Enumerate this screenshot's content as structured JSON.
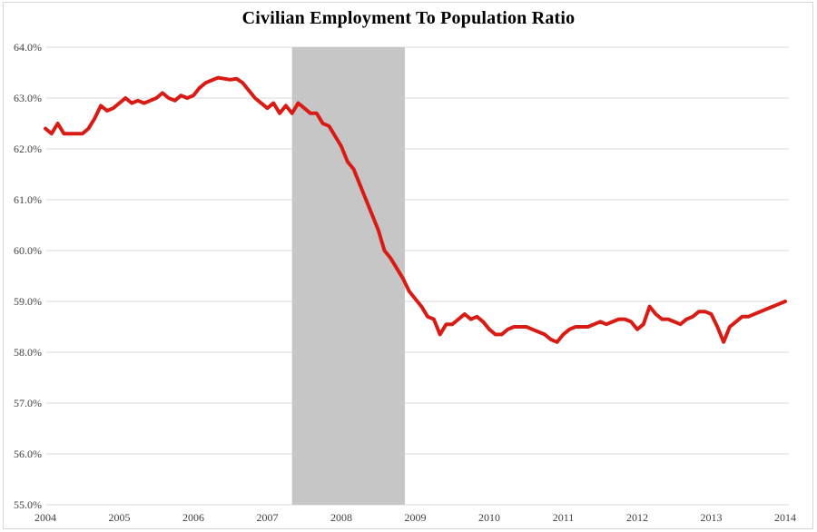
{
  "page": {
    "background": "#ffffff",
    "frame_border_color": "#d6d6d6"
  },
  "chart_data": {
    "type": "line",
    "title": "Civilian Employment To Population Ratio",
    "xlabel": "",
    "ylabel": "",
    "ylim": [
      55,
      64
    ],
    "grid": true,
    "legend": "none",
    "frequency": "monthly",
    "x_start": "2004-01",
    "x_end": "2014-01",
    "y_tick_values": [
      64,
      63,
      62,
      61,
      60,
      59,
      58,
      57,
      56,
      55
    ],
    "y_tick_labels": [
      "64.0%",
      "63.0%",
      "62.0%",
      "61.0%",
      "60.0%",
      "59.0%",
      "58.0%",
      "57.0%",
      "56.0%",
      "55.0%"
    ],
    "x_tick_labels": [
      "2004",
      "2005",
      "2006",
      "2007",
      "2008",
      "2009",
      "2010",
      "2011",
      "2012",
      "2013",
      "2014"
    ],
    "x_tick_month_indices": [
      0,
      12,
      24,
      36,
      48,
      60,
      72,
      84,
      96,
      108,
      120
    ],
    "shaded_region": {
      "name": "recession-band",
      "start_month_index": 40,
      "end_month_index": 58.3,
      "color": "#c6c6c6"
    },
    "colors": {
      "gridline": "#d9d9d9",
      "tick_label": "#404040",
      "title": "#000000"
    },
    "series": [
      {
        "name": "Civilian Employment To Population Ratio",
        "color": "#d81c15",
        "line_width": 4,
        "values": [
          62.4,
          62.3,
          62.5,
          62.3,
          62.3,
          62.3,
          62.3,
          62.4,
          62.6,
          62.85,
          62.75,
          62.8,
          62.9,
          63.0,
          62.9,
          62.95,
          62.9,
          62.95,
          63.0,
          63.1,
          63.0,
          62.95,
          63.05,
          63.0,
          63.05,
          63.2,
          63.3,
          63.35,
          63.4,
          63.38,
          63.36,
          63.38,
          63.3,
          63.15,
          63.0,
          62.9,
          62.8,
          62.9,
          62.7,
          62.85,
          62.7,
          62.9,
          62.8,
          62.7,
          62.7,
          62.5,
          62.45,
          62.25,
          62.05,
          61.75,
          61.6,
          61.3,
          61.0,
          60.7,
          60.4,
          60.0,
          59.85,
          59.65,
          59.45,
          59.2,
          59.05,
          58.9,
          58.7,
          58.65,
          58.35,
          58.55,
          58.55,
          58.65,
          58.75,
          58.65,
          58.7,
          58.6,
          58.45,
          58.35,
          58.35,
          58.45,
          58.5,
          58.5,
          58.5,
          58.45,
          58.4,
          58.35,
          58.25,
          58.2,
          58.35,
          58.45,
          58.5,
          58.5,
          58.5,
          58.55,
          58.6,
          58.55,
          58.6,
          58.65,
          58.65,
          58.6,
          58.45,
          58.55,
          58.9,
          58.75,
          58.65,
          58.65,
          58.6,
          58.55,
          58.65,
          58.7,
          58.8,
          58.8,
          58.75,
          58.5,
          58.2,
          58.5,
          58.6,
          58.7,
          58.7,
          58.75,
          58.8,
          58.85,
          58.9,
          58.95,
          59.0
        ]
      }
    ]
  }
}
